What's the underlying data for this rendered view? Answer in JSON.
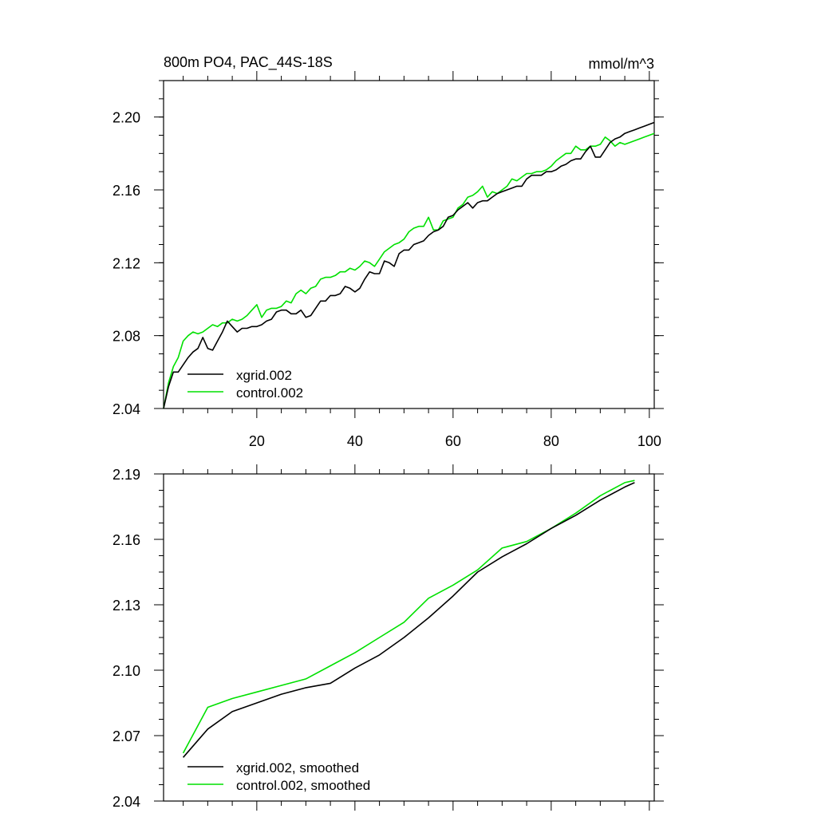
{
  "chart_data": [
    {
      "type": "line",
      "title": "800m PO4, PAC_44S-18S",
      "units": "mmol/m^3",
      "xlim": [
        1,
        101
      ],
      "ylim": [
        2.04,
        2.22
      ],
      "x_ticks": [
        20,
        40,
        60,
        80,
        100
      ],
      "x_tick_labels": [
        "20",
        "40",
        "60",
        "80",
        "100"
      ],
      "y_ticks": [
        2.04,
        2.08,
        2.12,
        2.16,
        2.2
      ],
      "y_tick_labels": [
        "2.04",
        "2.08",
        "2.12",
        "2.16",
        "2.20"
      ],
      "x": [
        1,
        2,
        3,
        4,
        5,
        6,
        7,
        8,
        9,
        10,
        11,
        12,
        13,
        14,
        15,
        16,
        17,
        18,
        19,
        20,
        21,
        22,
        23,
        24,
        25,
        26,
        27,
        28,
        29,
        30,
        31,
        32,
        33,
        34,
        35,
        36,
        37,
        38,
        39,
        40,
        41,
        42,
        43,
        44,
        45,
        46,
        47,
        48,
        49,
        50,
        51,
        52,
        53,
        54,
        55,
        56,
        57,
        58,
        59,
        60,
        61,
        62,
        63,
        64,
        65,
        66,
        67,
        68,
        69,
        70,
        71,
        72,
        73,
        74,
        75,
        76,
        77,
        78,
        79,
        80,
        81,
        82,
        83,
        84,
        85,
        86,
        87,
        88,
        89,
        90,
        91,
        92,
        93,
        94,
        95,
        96,
        97,
        98,
        99,
        100,
        101
      ],
      "series": [
        {
          "name": "xgrid.002",
          "color": "#000000",
          "values": [
            2.04,
            2.052,
            2.06,
            2.06,
            2.064,
            2.068,
            2.071,
            2.073,
            2.079,
            2.073,
            2.072,
            2.077,
            2.082,
            2.088,
            2.085,
            2.082,
            2.084,
            2.084,
            2.085,
            2.085,
            2.086,
            2.088,
            2.089,
            2.093,
            2.094,
            2.094,
            2.092,
            2.092,
            2.094,
            2.09,
            2.091,
            2.095,
            2.099,
            2.099,
            2.102,
            2.102,
            2.103,
            2.107,
            2.106,
            2.104,
            2.106,
            2.111,
            2.115,
            2.114,
            2.114,
            2.121,
            2.12,
            2.118,
            2.125,
            2.127,
            2.127,
            2.13,
            2.131,
            2.132,
            2.135,
            2.137,
            2.138,
            2.14,
            2.145,
            2.146,
            2.149,
            2.151,
            2.153,
            2.15,
            2.153,
            2.154,
            2.154,
            2.156,
            2.158,
            2.159,
            2.16,
            2.161,
            2.162,
            2.162,
            2.166,
            2.168,
            2.168,
            2.168,
            2.17,
            2.17,
            2.171,
            2.173,
            2.174,
            2.176,
            2.177,
            2.177,
            2.181,
            2.184,
            2.178,
            2.178,
            2.182,
            2.186,
            2.188,
            2.189,
            2.191,
            2.192,
            2.193,
            2.194,
            2.195,
            2.196,
            2.197
          ]
        },
        {
          "name": "control.002",
          "color": "#00e000",
          "values": [
            2.04,
            2.054,
            2.063,
            2.068,
            2.077,
            2.08,
            2.082,
            2.081,
            2.082,
            2.084,
            2.086,
            2.085,
            2.087,
            2.087,
            2.089,
            2.088,
            2.089,
            2.091,
            2.094,
            2.097,
            2.09,
            2.094,
            2.095,
            2.095,
            2.096,
            2.099,
            2.098,
            2.103,
            2.105,
            2.103,
            2.106,
            2.107,
            2.111,
            2.112,
            2.112,
            2.113,
            2.115,
            2.115,
            2.117,
            2.116,
            2.118,
            2.121,
            2.12,
            2.118,
            2.122,
            2.126,
            2.128,
            2.13,
            2.131,
            2.133,
            2.137,
            2.139,
            2.14,
            2.14,
            2.145,
            2.138,
            2.138,
            2.143,
            2.144,
            2.145,
            2.15,
            2.152,
            2.156,
            2.157,
            2.159,
            2.162,
            2.156,
            2.159,
            2.158,
            2.16,
            2.162,
            2.166,
            2.165,
            2.167,
            2.169,
            2.169,
            2.17,
            2.17,
            2.171,
            2.173,
            2.176,
            2.178,
            2.18,
            2.18,
            2.184,
            2.182,
            2.182,
            2.184,
            2.184,
            2.185,
            2.189,
            2.187,
            2.184,
            2.186,
            2.185,
            2.186,
            2.187,
            2.188,
            2.189,
            2.19,
            2.191
          ]
        }
      ],
      "legend": {
        "placement": "bottom-left",
        "entries": [
          "xgrid.002",
          "control.002"
        ]
      }
    },
    {
      "type": "line",
      "title": "",
      "xlim": [
        1,
        101
      ],
      "ylim": [
        2.04,
        2.19
      ],
      "x_ticks": [
        20,
        40,
        60,
        80,
        100
      ],
      "x_tick_labels": [],
      "y_ticks": [
        2.04,
        2.07,
        2.1,
        2.13,
        2.16,
        2.19
      ],
      "y_tick_labels": [
        "2.04",
        "2.07",
        "2.10",
        "2.13",
        "2.16",
        "2.19"
      ],
      "x": [
        5,
        10,
        15,
        20,
        25,
        30,
        35,
        40,
        45,
        50,
        55,
        60,
        65,
        70,
        75,
        80,
        85,
        90,
        95,
        97
      ],
      "series": [
        {
          "name": "xgrid.002, smoothed",
          "color": "#000000",
          "values": [
            2.06,
            2.073,
            2.081,
            2.085,
            2.089,
            2.092,
            2.094,
            2.101,
            2.107,
            2.115,
            2.124,
            2.134,
            2.145,
            2.152,
            2.158,
            2.165,
            2.171,
            2.178,
            2.184,
            2.186
          ]
        },
        {
          "name": "control.002, smoothed",
          "color": "#00e000",
          "values": [
            2.062,
            2.083,
            2.087,
            2.09,
            2.093,
            2.096,
            2.102,
            2.108,
            2.115,
            2.122,
            2.133,
            2.139,
            2.146,
            2.156,
            2.159,
            2.165,
            2.172,
            2.18,
            2.186,
            2.187
          ]
        }
      ],
      "legend": {
        "placement": "bottom-left",
        "entries": [
          "xgrid.002, smoothed",
          "control.002, smoothed"
        ]
      }
    }
  ]
}
